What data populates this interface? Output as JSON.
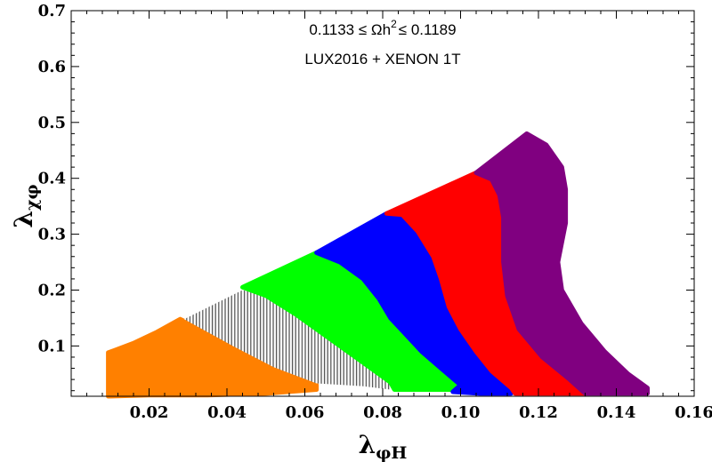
{
  "chart_data": {
    "type": "area",
    "title": "",
    "xlabel": "λ",
    "xlabel_subscript": "φH",
    "ylabel": "λ",
    "ylabel_subscript": "χφ",
    "xlim": [
      0.0,
      0.16
    ],
    "ylim": [
      0.01,
      0.7
    ],
    "x_ticks": [
      0.02,
      0.04,
      0.06,
      0.08,
      0.1,
      0.12,
      0.14,
      0.16
    ],
    "x_tick_labels": [
      "0.02",
      "0.04",
      "0.06",
      "0.08",
      "0.10",
      "0.12",
      "0.14",
      "0.16"
    ],
    "y_ticks": [
      0.1,
      0.2,
      0.3,
      0.4,
      0.5,
      0.6,
      0.7
    ],
    "y_tick_labels": [
      "0.1",
      "0.2",
      "0.3",
      "0.4",
      "0.5",
      "0.6",
      "0.7"
    ],
    "grid": false,
    "annotations": {
      "line1_prefix": "0.1133 ≤ Ωh",
      "line1_sup": "2",
      "line1_suffix": "≤ 0.1189",
      "line2": "LUX2016 + XENON 1T"
    },
    "regions": [
      {
        "fill": "#ff8000",
        "pattern": "solid",
        "points": [
          [
            0.0095,
            0.01
          ],
          [
            0.0095,
            0.088
          ],
          [
            0.016,
            0.105
          ],
          [
            0.022,
            0.125
          ],
          [
            0.028,
            0.148
          ],
          [
            0.035,
            0.125
          ],
          [
            0.045,
            0.085
          ],
          [
            0.055,
            0.05
          ],
          [
            0.063,
            0.03
          ],
          [
            0.063,
            0.022
          ],
          [
            0.05,
            0.015
          ],
          [
            0.035,
            0.012
          ],
          [
            0.02,
            0.012
          ],
          [
            0.0095,
            0.01
          ]
        ]
      },
      {
        "fill": "#555555",
        "pattern": "hatch",
        "points": [
          [
            0.029,
            0.148
          ],
          [
            0.044,
            0.2
          ],
          [
            0.05,
            0.19
          ],
          [
            0.058,
            0.155
          ],
          [
            0.066,
            0.115
          ],
          [
            0.074,
            0.075
          ],
          [
            0.082,
            0.035
          ],
          [
            0.082,
            0.022
          ],
          [
            0.075,
            0.028
          ],
          [
            0.063,
            0.033
          ],
          [
            0.052,
            0.062
          ],
          [
            0.042,
            0.098
          ],
          [
            0.035,
            0.125
          ],
          [
            0.029,
            0.148
          ]
        ]
      },
      {
        "fill": "#00ff00",
        "pattern": "solid",
        "points": [
          [
            0.044,
            0.205
          ],
          [
            0.063,
            0.267
          ],
          [
            0.069,
            0.25
          ],
          [
            0.075,
            0.22
          ],
          [
            0.079,
            0.185
          ],
          [
            0.082,
            0.15
          ],
          [
            0.086,
            0.12
          ],
          [
            0.09,
            0.09
          ],
          [
            0.095,
            0.06
          ],
          [
            0.1,
            0.03
          ],
          [
            0.1,
            0.022
          ],
          [
            0.09,
            0.022
          ],
          [
            0.083,
            0.022
          ],
          [
            0.082,
            0.035
          ],
          [
            0.074,
            0.075
          ],
          [
            0.066,
            0.115
          ],
          [
            0.058,
            0.155
          ],
          [
            0.05,
            0.19
          ],
          [
            0.044,
            0.205
          ]
        ]
      },
      {
        "fill": "#0000ff",
        "pattern": "solid",
        "points": [
          [
            0.063,
            0.267
          ],
          [
            0.081,
            0.337
          ],
          [
            0.085,
            0.335
          ],
          [
            0.089,
            0.305
          ],
          [
            0.093,
            0.26
          ],
          [
            0.095,
            0.22
          ],
          [
            0.097,
            0.17
          ],
          [
            0.1,
            0.13
          ],
          [
            0.104,
            0.09
          ],
          [
            0.108,
            0.055
          ],
          [
            0.113,
            0.025
          ],
          [
            0.113,
            0.015
          ],
          [
            0.105,
            0.015
          ],
          [
            0.098,
            0.018
          ],
          [
            0.1,
            0.03
          ],
          [
            0.095,
            0.06
          ],
          [
            0.09,
            0.09
          ],
          [
            0.086,
            0.12
          ],
          [
            0.082,
            0.15
          ],
          [
            0.079,
            0.185
          ],
          [
            0.075,
            0.22
          ],
          [
            0.069,
            0.25
          ],
          [
            0.063,
            0.267
          ]
        ]
      },
      {
        "fill": "#ff0000",
        "pattern": "solid",
        "points": [
          [
            0.081,
            0.337
          ],
          [
            0.104,
            0.41
          ],
          [
            0.108,
            0.398
          ],
          [
            0.11,
            0.37
          ],
          [
            0.111,
            0.33
          ],
          [
            0.111,
            0.25
          ],
          [
            0.112,
            0.19
          ],
          [
            0.115,
            0.13
          ],
          [
            0.121,
            0.08
          ],
          [
            0.128,
            0.04
          ],
          [
            0.132,
            0.015
          ],
          [
            0.126,
            0.015
          ],
          [
            0.114,
            0.015
          ],
          [
            0.113,
            0.025
          ],
          [
            0.108,
            0.055
          ],
          [
            0.104,
            0.09
          ],
          [
            0.1,
            0.13
          ],
          [
            0.097,
            0.17
          ],
          [
            0.095,
            0.22
          ],
          [
            0.093,
            0.26
          ],
          [
            0.089,
            0.305
          ],
          [
            0.085,
            0.335
          ],
          [
            0.081,
            0.337
          ]
        ]
      },
      {
        "fill": "#800080",
        "pattern": "solid",
        "points": [
          [
            0.104,
            0.41
          ],
          [
            0.117,
            0.48
          ],
          [
            0.122,
            0.46
          ],
          [
            0.126,
            0.42
          ],
          [
            0.127,
            0.38
          ],
          [
            0.127,
            0.32
          ],
          [
            0.125,
            0.25
          ],
          [
            0.126,
            0.2
          ],
          [
            0.131,
            0.14
          ],
          [
            0.137,
            0.09
          ],
          [
            0.143,
            0.05
          ],
          [
            0.148,
            0.025
          ],
          [
            0.148,
            0.015
          ],
          [
            0.14,
            0.015
          ],
          [
            0.132,
            0.015
          ],
          [
            0.128,
            0.04
          ],
          [
            0.121,
            0.08
          ],
          [
            0.115,
            0.13
          ],
          [
            0.112,
            0.19
          ],
          [
            0.111,
            0.25
          ],
          [
            0.111,
            0.33
          ],
          [
            0.11,
            0.37
          ],
          [
            0.108,
            0.398
          ],
          [
            0.104,
            0.41
          ]
        ]
      }
    ]
  }
}
